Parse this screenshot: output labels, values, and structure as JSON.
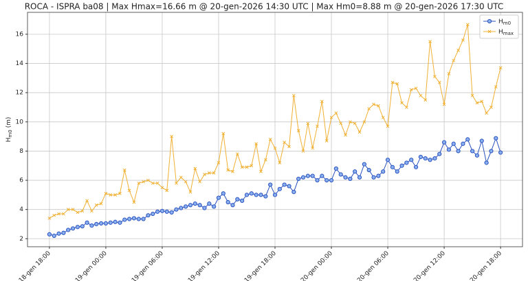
{
  "chart_data": {
    "type": "line",
    "title": "ROCA - ISPRA ba08 | Max Hmax=16.66 m @ 20-gen-2026 14:30 UTC | Max Hm0=8.88 m @ 20-gen-2026 17:30 UTC",
    "ylabel": "Hm0 (m)",
    "x": [
      "18-gen 18:00",
      "18-gen 18:30",
      "18-gen 19:00",
      "18-gen 19:30",
      "18-gen 20:00",
      "18-gen 20:30",
      "18-gen 21:00",
      "18-gen 21:30",
      "18-gen 22:00",
      "18-gen 22:30",
      "18-gen 23:00",
      "18-gen 23:30",
      "19-gen 00:00",
      "19-gen 00:30",
      "19-gen 01:00",
      "19-gen 01:30",
      "19-gen 02:00",
      "19-gen 02:30",
      "19-gen 03:00",
      "19-gen 03:30",
      "19-gen 04:00",
      "19-gen 04:30",
      "19-gen 05:00",
      "19-gen 05:30",
      "19-gen 06:00",
      "19-gen 06:30",
      "19-gen 07:00",
      "19-gen 07:30",
      "19-gen 08:00",
      "19-gen 08:30",
      "19-gen 09:00",
      "19-gen 09:30",
      "19-gen 10:00",
      "19-gen 10:30",
      "19-gen 11:00",
      "19-gen 11:30",
      "19-gen 12:00",
      "19-gen 12:30",
      "19-gen 13:00",
      "19-gen 13:30",
      "19-gen 14:00",
      "19-gen 14:30",
      "19-gen 15:00",
      "19-gen 15:30",
      "19-gen 16:00",
      "19-gen 16:30",
      "19-gen 17:00",
      "19-gen 17:30",
      "19-gen 18:00",
      "19-gen 18:30",
      "19-gen 19:00",
      "19-gen 19:30",
      "19-gen 20:00",
      "19-gen 20:30",
      "19-gen 21:00",
      "19-gen 21:30",
      "19-gen 22:00",
      "19-gen 22:30",
      "19-gen 23:00",
      "19-gen 23:30",
      "20-gen 00:00",
      "20-gen 00:30",
      "20-gen 01:00",
      "20-gen 01:30",
      "20-gen 02:00",
      "20-gen 02:30",
      "20-gen 03:00",
      "20-gen 03:30",
      "20-gen 04:00",
      "20-gen 04:30",
      "20-gen 05:00",
      "20-gen 05:30",
      "20-gen 06:00",
      "20-gen 06:30",
      "20-gen 07:00",
      "20-gen 07:30",
      "20-gen 08:00",
      "20-gen 08:30",
      "20-gen 09:00",
      "20-gen 09:30",
      "20-gen 10:00",
      "20-gen 10:30",
      "20-gen 11:00",
      "20-gen 11:30",
      "20-gen 12:00",
      "20-gen 12:30",
      "20-gen 13:00",
      "20-gen 13:30",
      "20-gen 14:00",
      "20-gen 14:30",
      "20-gen 15:00",
      "20-gen 15:30",
      "20-gen 16:00",
      "20-gen 16:30",
      "20-gen 17:00",
      "20-gen 17:30",
      "20-gen 18:00"
    ],
    "series": [
      {
        "name": "Hm0",
        "color": "#2a52be",
        "marker": "o",
        "values": [
          2.3,
          2.2,
          2.35,
          2.4,
          2.6,
          2.7,
          2.8,
          2.85,
          3.1,
          2.9,
          3.0,
          3.05,
          3.05,
          3.1,
          3.15,
          3.1,
          3.3,
          3.35,
          3.4,
          3.35,
          3.35,
          3.6,
          3.7,
          3.85,
          3.9,
          3.85,
          3.8,
          4.0,
          4.1,
          4.2,
          4.3,
          4.4,
          4.3,
          4.1,
          4.4,
          4.2,
          4.8,
          5.1,
          4.5,
          4.3,
          4.7,
          4.6,
          5.0,
          5.1,
          5.0,
          5.0,
          4.9,
          5.7,
          5.0,
          5.4,
          5.7,
          5.6,
          5.2,
          6.1,
          6.2,
          6.3,
          6.3,
          6.0,
          6.3,
          6.0,
          6.0,
          6.8,
          6.4,
          6.2,
          6.1,
          6.6,
          6.2,
          7.1,
          6.7,
          6.2,
          6.3,
          6.6,
          7.4,
          6.9,
          6.6,
          7.0,
          7.2,
          7.4,
          6.9,
          7.6,
          7.5,
          7.4,
          7.5,
          7.8,
          8.6,
          8.1,
          8.5,
          8.0,
          8.5,
          8.8,
          8.0,
          7.7,
          8.7,
          7.2,
          8.0,
          8.88,
          7.9
        ]
      },
      {
        "name": "Hmax",
        "color": "#f0b032",
        "marker": "x",
        "values": [
          3.4,
          3.6,
          3.7,
          3.7,
          4.0,
          4.0,
          3.8,
          3.9,
          4.6,
          3.9,
          4.3,
          4.4,
          5.1,
          5.0,
          5.0,
          5.1,
          6.7,
          5.3,
          4.5,
          5.8,
          5.9,
          6.0,
          5.8,
          5.8,
          5.5,
          5.3,
          9.0,
          5.8,
          6.2,
          5.9,
          5.2,
          6.8,
          5.9,
          6.4,
          6.5,
          6.5,
          7.2,
          9.2,
          6.7,
          6.6,
          7.8,
          6.9,
          6.9,
          7.0,
          8.5,
          6.6,
          7.4,
          8.8,
          8.2,
          7.2,
          8.6,
          8.3,
          11.8,
          9.4,
          8.0,
          9.9,
          8.2,
          9.7,
          11.4,
          8.7,
          10.3,
          10.6,
          9.9,
          9.1,
          10.0,
          9.9,
          9.3,
          10.0,
          10.9,
          11.2,
          11.1,
          10.3,
          9.7,
          12.7,
          12.6,
          11.3,
          11.0,
          12.2,
          12.3,
          11.8,
          11.5,
          15.5,
          13.1,
          12.7,
          11.2,
          13.3,
          14.2,
          14.9,
          15.6,
          16.66,
          11.8,
          11.3,
          11.4,
          10.6,
          11.0,
          12.4,
          13.7
        ]
      }
    ],
    "xlim": [
      "18-gen 15:40",
      "20-gen 20:20"
    ],
    "xticks": [
      "18-gen 18:00",
      "19-gen 00:00",
      "19-gen 06:00",
      "19-gen 12:00",
      "19-gen 18:00",
      "20-gen 00:00",
      "20-gen 06:00",
      "20-gen 12:00",
      "20-gen 18:00"
    ],
    "ylim": [
      1.45,
      17.5
    ],
    "yticks": [
      2,
      4,
      6,
      8,
      10,
      12,
      14,
      16
    ],
    "grid": true,
    "legend": "upper right"
  }
}
